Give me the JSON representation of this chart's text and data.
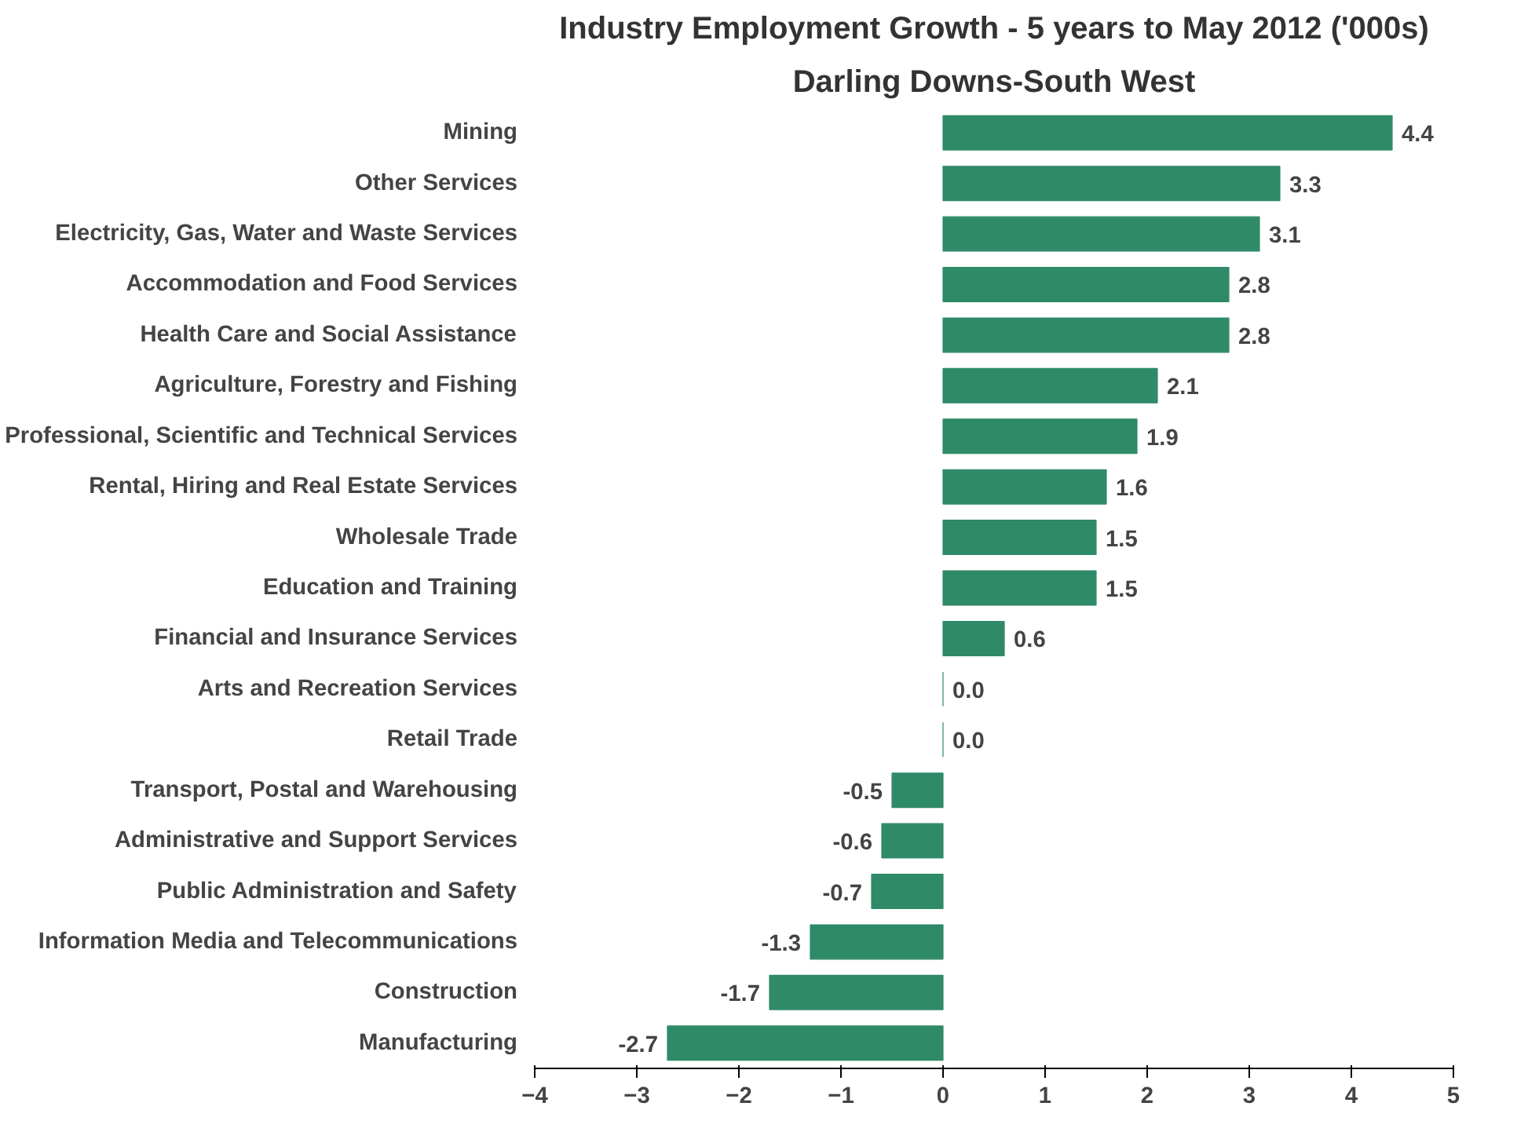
{
  "chart_data": {
    "type": "bar",
    "orientation": "horizontal",
    "title": "Industry Employment Growth - 5 years to May 2012 ('000s)",
    "subtitle": "Darling Downs-South West",
    "categories": [
      "Mining",
      "Other Services",
      "Electricity, Gas, Water and Waste Services",
      "Accommodation and Food Services",
      "Health Care and Social Assistance",
      "Agriculture, Forestry and Fishing",
      "Professional, Scientific and Technical Services",
      "Rental, Hiring and Real Estate Services",
      "Wholesale Trade",
      "Education and Training",
      "Financial and Insurance Services",
      "Arts and Recreation Services",
      "Retail Trade",
      "Transport, Postal and Warehousing",
      "Administrative and Support Services",
      "Public Administration and Safety",
      "Information Media and Telecommunications",
      "Construction",
      "Manufacturing"
    ],
    "values": [
      4.4,
      3.3,
      3.1,
      2.8,
      2.8,
      2.1,
      1.9,
      1.6,
      1.5,
      1.5,
      0.6,
      0.0,
      0.0,
      -0.5,
      -0.6,
      -0.7,
      -1.3,
      -1.7,
      -2.7
    ],
    "color": "#2f8a68",
    "value_labels": [
      "4.4",
      "3.3",
      "3.1",
      "2.8",
      "2.8",
      "2.1",
      "1.9",
      "1.6",
      "1.5",
      "1.5",
      "0.6",
      "0.0",
      "0.0",
      "-0.5",
      "-0.6",
      "-0.7",
      "-1.3",
      "-1.7",
      "-2.7"
    ],
    "xlim": [
      -4,
      5
    ],
    "xticks": [
      -4,
      -3,
      -2,
      -1,
      0,
      1,
      2,
      3,
      4,
      5
    ],
    "grid": false
  }
}
